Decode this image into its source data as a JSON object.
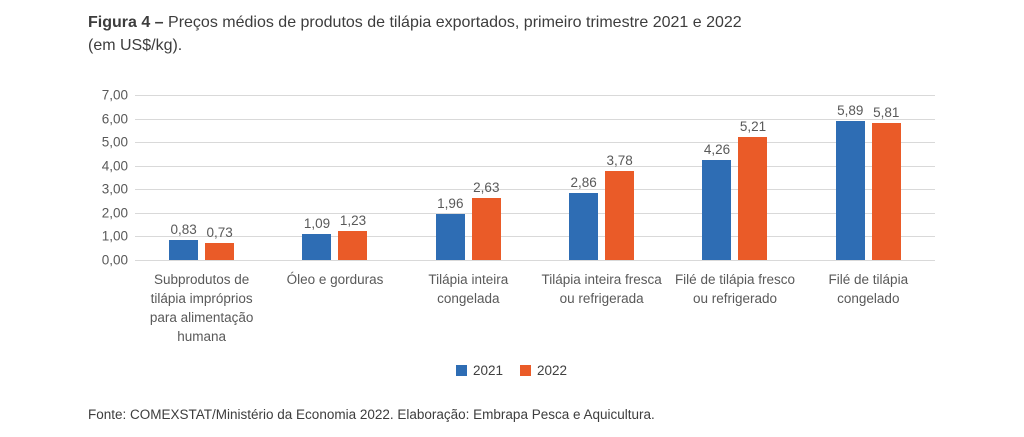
{
  "header": {
    "title_bold": "Figura 4 –",
    "title_line1": " Preços médios de produtos de tilápia exportados, primeiro trimestre 2021 e 2022",
    "title_line2": "(em US$/kg)."
  },
  "chart_data": {
    "type": "bar",
    "title": "Preços médios de produtos de tilápia exportados, primeiro trimestre 2021 e 2022 (em US$/kg)",
    "categories": [
      "Subprodutos de tilápia impróprios para alimentação humana",
      "Óleo e gorduras",
      "Tilápia inteira congelada",
      "Tilápia inteira fresca ou refrigerada",
      "Filé de tilápia fresco ou refrigerado",
      "Filé de tilápia congelado"
    ],
    "series": [
      {
        "name": "2021",
        "color": "#2E6DB4",
        "values": [
          0.83,
          1.09,
          1.96,
          2.86,
          4.26,
          5.89
        ]
      },
      {
        "name": "2022",
        "color": "#EA5B28",
        "values": [
          0.73,
          1.23,
          2.63,
          3.78,
          5.21,
          5.81
        ]
      }
    ],
    "value_labels": [
      [
        "0,83",
        "1,09",
        "1,96",
        "2,86",
        "4,26",
        "5,89"
      ],
      [
        "0,73",
        "1,23",
        "2,63",
        "3,78",
        "5,21",
        "5,81"
      ]
    ],
    "ylim": [
      0,
      7
    ],
    "y_ticks": [
      "7,00",
      "6,00",
      "5,00",
      "4,00",
      "3,00",
      "2,00",
      "1,00",
      "0,00"
    ],
    "xlabel": "",
    "ylabel": "",
    "grid": true,
    "gridline_color": "#d9d9d9",
    "legend_position": "bottom",
    "decimal_separator": ","
  },
  "footer": {
    "source": "Fonte: COMEXSTAT/Ministério da Economia 2022. Elaboração: Embrapa Pesca e Aquicultura."
  }
}
